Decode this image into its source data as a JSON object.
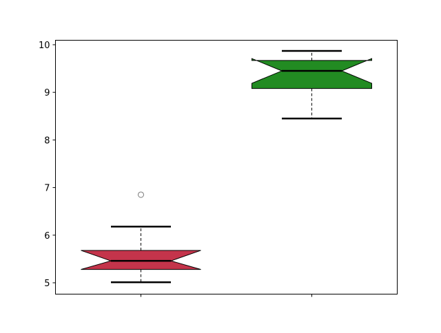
{
  "chart_data": {
    "type": "boxplot",
    "notched": true,
    "title": "",
    "xlabel": "",
    "ylabel": "",
    "ylim": [
      4.8,
      10.1
    ],
    "yticks": [
      "5",
      "6",
      "7",
      "8",
      "9",
      "10"
    ],
    "xticks": [
      "",
      ""
    ],
    "grid": false,
    "boxes": [
      {
        "q1": 5.28,
        "median": 5.46,
        "q3": 5.68,
        "notch_low": 5.28,
        "notch_high": 5.68,
        "whisker_low": 5.01,
        "whisker_high": 6.18,
        "outliers": [
          6.85
        ],
        "color": "#c4344b"
      },
      {
        "q1": 9.08,
        "median": 9.45,
        "q3": 9.67,
        "notch_low": 9.19,
        "notch_high": 9.71,
        "whisker_low": 8.45,
        "whisker_high": 9.87,
        "outliers": [],
        "color": "#228b22"
      }
    ]
  }
}
